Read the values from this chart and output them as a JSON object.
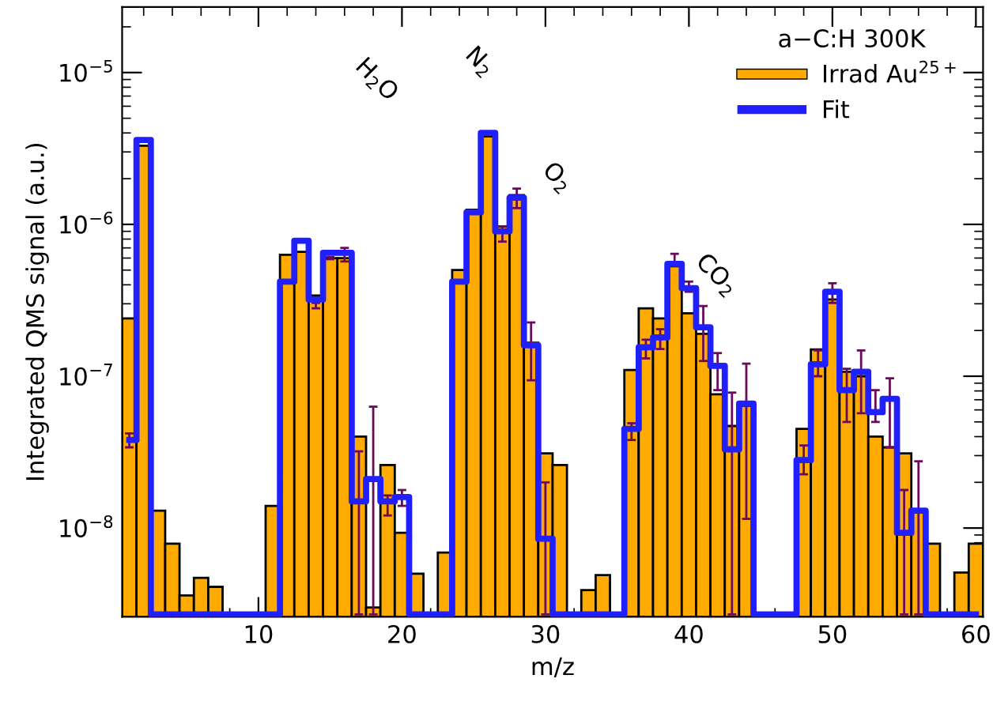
{
  "chart_data": {
    "type": "histogram",
    "xlabel": "m/z",
    "ylabel": "Integrated QMS signal (a.u.)",
    "legend_title": "a−C:H 300K",
    "bins": [
      0.5,
      1.5,
      2.5,
      3.5,
      4.5,
      5.5,
      6.5,
      7.5,
      8.5,
      9.5,
      10.5,
      11.5,
      12.5,
      13.5,
      14.5,
      15.5,
      16.5,
      17.5,
      18.5,
      19.5,
      20.5,
      21.5,
      22.5,
      23.5,
      24.5,
      25.5,
      26.5,
      27.5,
      28.5,
      29.5,
      30.5,
      31.5,
      32.5,
      33.5,
      34.5,
      35.5,
      36.5,
      37.5,
      38.5,
      39.5,
      40.5,
      41.5,
      42.5,
      43.5,
      44.5,
      45.5,
      46.5,
      47.5,
      48.5,
      49.5,
      50.5,
      51.5,
      52.5,
      53.5,
      54.5,
      55.5,
      56.5,
      57.5,
      58.5,
      59.5,
      60.5
    ],
    "series": [
      {
        "name": "Irrad Au$^{25+}$",
        "color": "#ffaa00",
        "values": [
          2.4e-07,
          3.3e-06,
          1.3e-08,
          7.9e-09,
          3.6e-09,
          4.7e-09,
          4.1e-09,
          null,
          null,
          null,
          1.4e-08,
          6.3e-07,
          6.6e-07,
          3.4e-07,
          6e-07,
          6e-07,
          4e-08,
          3e-09,
          2.6e-08,
          9.3e-09,
          5e-09,
          null,
          6.9e-09,
          5e-07,
          1.25e-06,
          3.8e-06,
          9.7e-07,
          1.56e-06,
          1.66e-07,
          3.1e-08,
          2.6e-08,
          null,
          3.9e-09,
          4.9e-09,
          null,
          1.1e-07,
          2.8e-07,
          2.4e-07,
          5.3e-07,
          2.6e-07,
          1.9e-07,
          7.6e-08,
          4.7e-08,
          6.4e-08,
          null,
          null,
          null,
          4.5e-08,
          1.5e-07,
          3.2e-07,
          1.07e-07,
          1e-07,
          4e-08,
          3.4e-08,
          3.1e-08,
          1.3e-08,
          7.9e-09,
          null,
          5.1e-09,
          7.9e-09
        ],
        "errors": [
          [
            3.4e-08,
            4.2e-08
          ],
          null,
          null,
          null,
          null,
          null,
          null,
          null,
          null,
          null,
          null,
          null,
          null,
          [
            2.8e-07,
            3.04e-07
          ],
          [
            5.9e-07,
            6.1e-07
          ],
          [
            5.7e-07,
            7e-07
          ],
          [
            2.7e-09,
            3.2e-08
          ],
          [
            2.7e-09,
            6.3e-08
          ],
          [
            1.21e-08,
            1.64e-08
          ],
          [
            1.4e-08,
            1.78e-08
          ],
          null,
          null,
          null,
          null,
          null,
          null,
          [
            7.7e-07,
            9.7e-07
          ],
          [
            1.28e-06,
            1.72e-06
          ],
          [
            9.4e-08,
            2.26e-07
          ],
          [
            2.7e-09,
            2e-08
          ],
          null,
          null,
          null,
          null,
          null,
          [
            3.8e-08,
            4.9e-08
          ],
          [
            1.31e-07,
            1.74e-07
          ],
          [
            1.51e-07,
            2.04e-07
          ],
          [
            5.6e-07,
            6.4e-07
          ],
          [
            3.6e-07,
            4.2e-07
          ],
          [
            1.26e-07,
            2.9e-07
          ],
          [
            8.1e-08,
            1.42e-07
          ],
          [
            2.7e-09,
            7.8e-08
          ],
          [
            1.15e-08,
            1.21e-07
          ],
          null,
          null,
          null,
          [
            2.26e-08,
            3.5e-08
          ],
          [
            1e-07,
            1.48e-07
          ],
          [
            3.04e-07,
            4.1e-07
          ],
          [
            5e-08,
            1.12e-07
          ],
          [
            5.7e-08,
            1.48e-07
          ],
          [
            5e-08,
            8.1e-08
          ],
          [
            3.4e-08,
            9.7e-08
          ],
          [
            2.7e-09,
            1.78e-08
          ],
          [
            2.7e-09,
            2.75e-08
          ],
          null,
          null,
          null,
          null
        ]
      },
      {
        "name": "Fit",
        "type": "step",
        "color": "#1f1fff",
        "x": [
          1,
          2,
          3,
          4,
          5,
          6,
          7,
          8,
          9,
          10,
          11,
          12,
          13,
          14,
          15,
          16,
          17,
          18,
          19,
          20,
          21,
          22,
          23,
          24,
          25,
          26,
          27,
          28,
          29,
          30,
          31,
          32,
          33,
          34,
          35,
          36,
          37,
          38,
          39,
          40,
          41,
          42,
          43,
          44,
          45,
          46,
          47,
          48,
          49,
          50,
          51,
          52,
          53,
          54,
          55,
          56,
          57,
          58,
          59,
          60
        ],
        "values": [
          3.8e-08,
          3.6e-06,
          2.7e-09,
          2.7e-09,
          2.7e-09,
          2.7e-09,
          2.7e-09,
          2.7e-09,
          2.7e-09,
          2.7e-09,
          2.7e-09,
          4.2e-07,
          7.8e-07,
          3.2e-07,
          6.5e-07,
          6.5e-07,
          1.5e-08,
          2.1e-08,
          1.5e-08,
          1.6e-08,
          2.7e-09,
          2.7e-09,
          2.7e-09,
          4.2e-07,
          1.2e-06,
          4e-06,
          9e-07,
          1.5e-06,
          1.6e-07,
          8.5e-09,
          2.7e-09,
          2.7e-09,
          2.7e-09,
          2.7e-09,
          2.7e-09,
          4.5e-08,
          1.55e-07,
          1.8e-07,
          5.5e-07,
          3.8e-07,
          2.1e-07,
          1.17e-07,
          3.3e-08,
          6.6e-08,
          2.7e-09,
          2.7e-09,
          2.7e-09,
          2.8e-08,
          1.2e-07,
          3.6e-07,
          8.1e-08,
          1.07e-07,
          5.8e-08,
          7.1e-08,
          9.3e-09,
          1.3e-08,
          2.7e-09,
          2.7e-09,
          2.7e-09,
          2.7e-09
        ]
      }
    ],
    "annotations": [
      "H$_{2}$O",
      "N$_{2}$",
      "O$_{2}$",
      "CO$_{2}$"
    ],
    "log": "y",
    "xlim": [
      0.5,
      60.5
    ],
    "ylim": [
      2.6e-09,
      2.7e-05
    ],
    "xticks": [
      10,
      20,
      30,
      40,
      50,
      60
    ],
    "yticks": [
      {
        "value": 1e-08,
        "label": "10$^{−8}$"
      },
      {
        "value": 1e-07,
        "label": "10$^{−7}$"
      },
      {
        "value": 1e-06,
        "label": "10$^{−6}$"
      },
      {
        "value": 1e-05,
        "label": "10$^{−5}$"
      }
    ],
    "grid": false,
    "legend": "top right"
  }
}
